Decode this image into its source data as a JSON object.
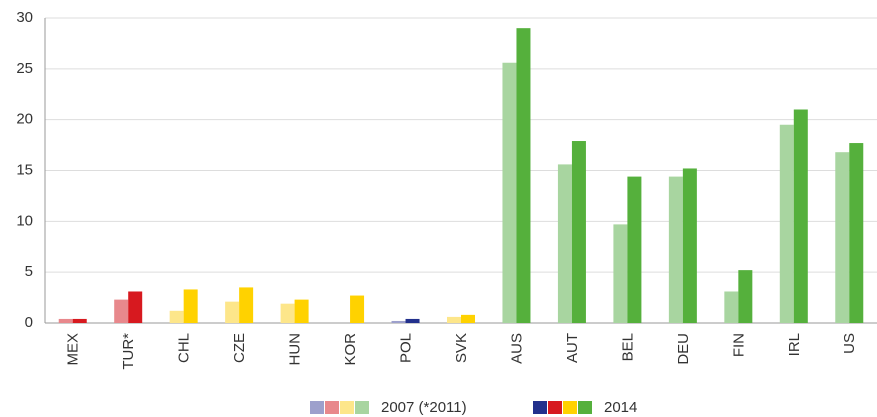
{
  "chart_data": {
    "type": "bar",
    "categories": [
      "MEX",
      "TUR*",
      "CHL",
      "CZE",
      "HUN",
      "KOR",
      "POL",
      "SVK",
      "AUS",
      "AUT",
      "BEL",
      "DEU",
      "FIN",
      "IRL",
      "US"
    ],
    "series": [
      {
        "name": "2007 (*2011)",
        "values": [
          0.4,
          2.3,
          1.2,
          2.1,
          1.9,
          null,
          0.2,
          0.6,
          25.6,
          15.6,
          9.7,
          14.4,
          3.1,
          19.5,
          16.8
        ],
        "colors": [
          "#e8888c",
          "#e8888c",
          "#fde68a",
          "#fde68a",
          "#fde68a",
          "#fde68a",
          "#9da0cc",
          "#fde68a",
          "#a8d5a0",
          "#a8d5a0",
          "#a8d5a0",
          "#a8d5a0",
          "#a8d5a0",
          "#a8d5a0",
          "#a8d5a0"
        ],
        "legend_colors": [
          "#9da0cc",
          "#e8888c",
          "#fde68a",
          "#a8d5a0"
        ]
      },
      {
        "name": "2014",
        "values": [
          0.4,
          3.1,
          3.3,
          3.5,
          2.3,
          2.7,
          0.4,
          0.8,
          29.0,
          17.9,
          14.4,
          15.2,
          5.2,
          21.0,
          17.7
        ],
        "colors": [
          "#d7191f",
          "#d7191f",
          "#ffd200",
          "#ffd200",
          "#ffd200",
          "#ffd200",
          "#22308c",
          "#ffd200",
          "#55b03c",
          "#55b03c",
          "#55b03c",
          "#55b03c",
          "#55b03c",
          "#55b03c",
          "#55b03c"
        ],
        "legend_colors": [
          "#22308c",
          "#d7191f",
          "#ffd200",
          "#55b03c"
        ]
      }
    ],
    "ylim": [
      0,
      30
    ],
    "yticks": [
      0,
      5,
      10,
      15,
      20,
      25,
      30
    ],
    "grid": true
  }
}
